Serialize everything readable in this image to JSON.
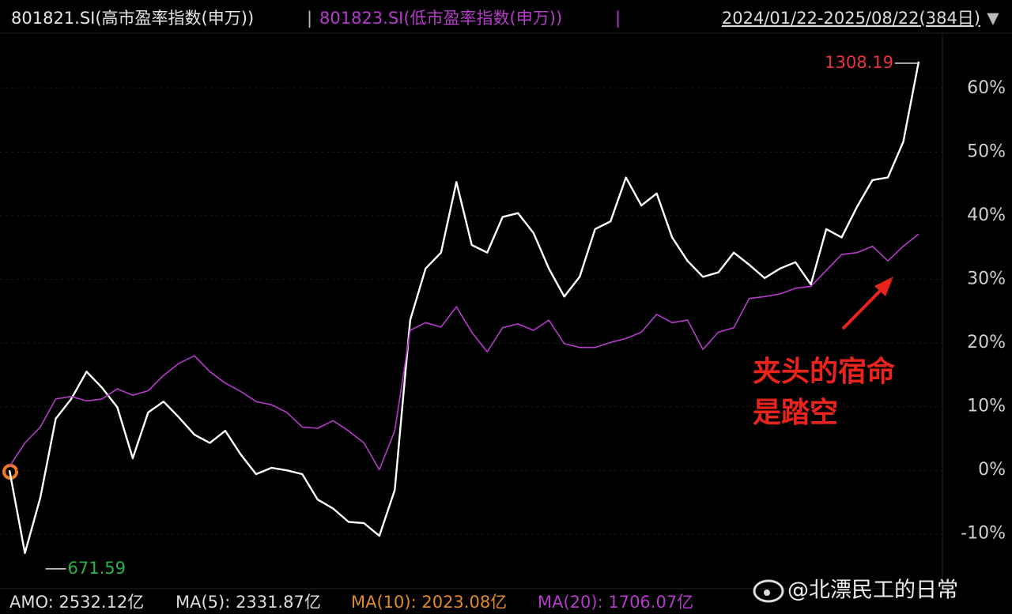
{
  "header": {
    "separator": "|",
    "date_range": "2024/01/22-2025/08/22(384日)",
    "dropdown": "▼"
  },
  "chart_data": {
    "type": "line",
    "series": [
      {
        "name": "801821.SI(高市盈率指数(申万))",
        "color": "#ffffff",
        "values": [
          0.0,
          -13.0,
          -4.3,
          8.1,
          11.2,
          15.5,
          13.0,
          9.9,
          1.9,
          9.1,
          10.8,
          8.3,
          5.6,
          4.3,
          6.2,
          2.5,
          -0.6,
          0.4,
          0.0,
          -0.6,
          -4.6,
          -6.0,
          -8.1,
          -8.3,
          -10.3,
          -3.1,
          23.6,
          31.7,
          34.2,
          45.3,
          35.4,
          34.2,
          39.8,
          40.4,
          37.3,
          31.7,
          27.3,
          30.4,
          37.9,
          39.1,
          46.0,
          41.6,
          43.5,
          36.6,
          32.9,
          30.4,
          31.1,
          34.2,
          32.3,
          30.2,
          31.7,
          32.7,
          29.2,
          37.9,
          36.6,
          41.4,
          45.6,
          46.0,
          51.6,
          64.2
        ]
      },
      {
        "name": "801823.SI(低市盈率指数(申万))",
        "color": "#b43cc8",
        "values": [
          0.6,
          4.3,
          6.8,
          11.2,
          11.6,
          10.9,
          11.2,
          12.8,
          11.8,
          12.5,
          14.9,
          16.8,
          18.0,
          15.5,
          13.7,
          12.4,
          10.8,
          10.3,
          9.1,
          6.8,
          6.6,
          7.8,
          6.2,
          4.3,
          0.1,
          6.2,
          22.0,
          23.2,
          22.5,
          25.7,
          21.7,
          18.6,
          22.4,
          23.0,
          22.0,
          23.6,
          19.9,
          19.3,
          19.3,
          20.1,
          20.7,
          21.7,
          24.5,
          23.2,
          23.6,
          19.0,
          21.7,
          22.4,
          27.0,
          27.3,
          27.7,
          28.6,
          28.9,
          31.4,
          33.9,
          34.2,
          35.2,
          32.9,
          35.2,
          37.1
        ]
      }
    ],
    "ylim": [
      -18.6,
      68.3
    ],
    "yticks": [
      {
        "value": -10,
        "label": "-10%"
      },
      {
        "value": 0,
        "label": "0%"
      },
      {
        "value": 10,
        "label": "10%"
      },
      {
        "value": 20,
        "label": "20%"
      },
      {
        "value": 30,
        "label": "30%"
      },
      {
        "value": 40,
        "label": "40%"
      },
      {
        "value": 50,
        "label": "50%"
      },
      {
        "value": 60,
        "label": "60%"
      }
    ],
    "grid": true,
    "max_label": "1308.19",
    "max_color": "#e8343c",
    "min_label": "671.59",
    "min_color": "#2fb34a",
    "annotation": [
      "夹头的宿命",
      "是踏空"
    ],
    "annotation_color": "#e8241c"
  },
  "footer": {
    "amo": "AMO: 2532.12亿",
    "ma5": "MA(5): 2331.87亿",
    "ma10": "MA(10): 2023.08亿",
    "ma20": "MA(20): 1706.07亿"
  },
  "watermark": "@北漂民工的日常"
}
